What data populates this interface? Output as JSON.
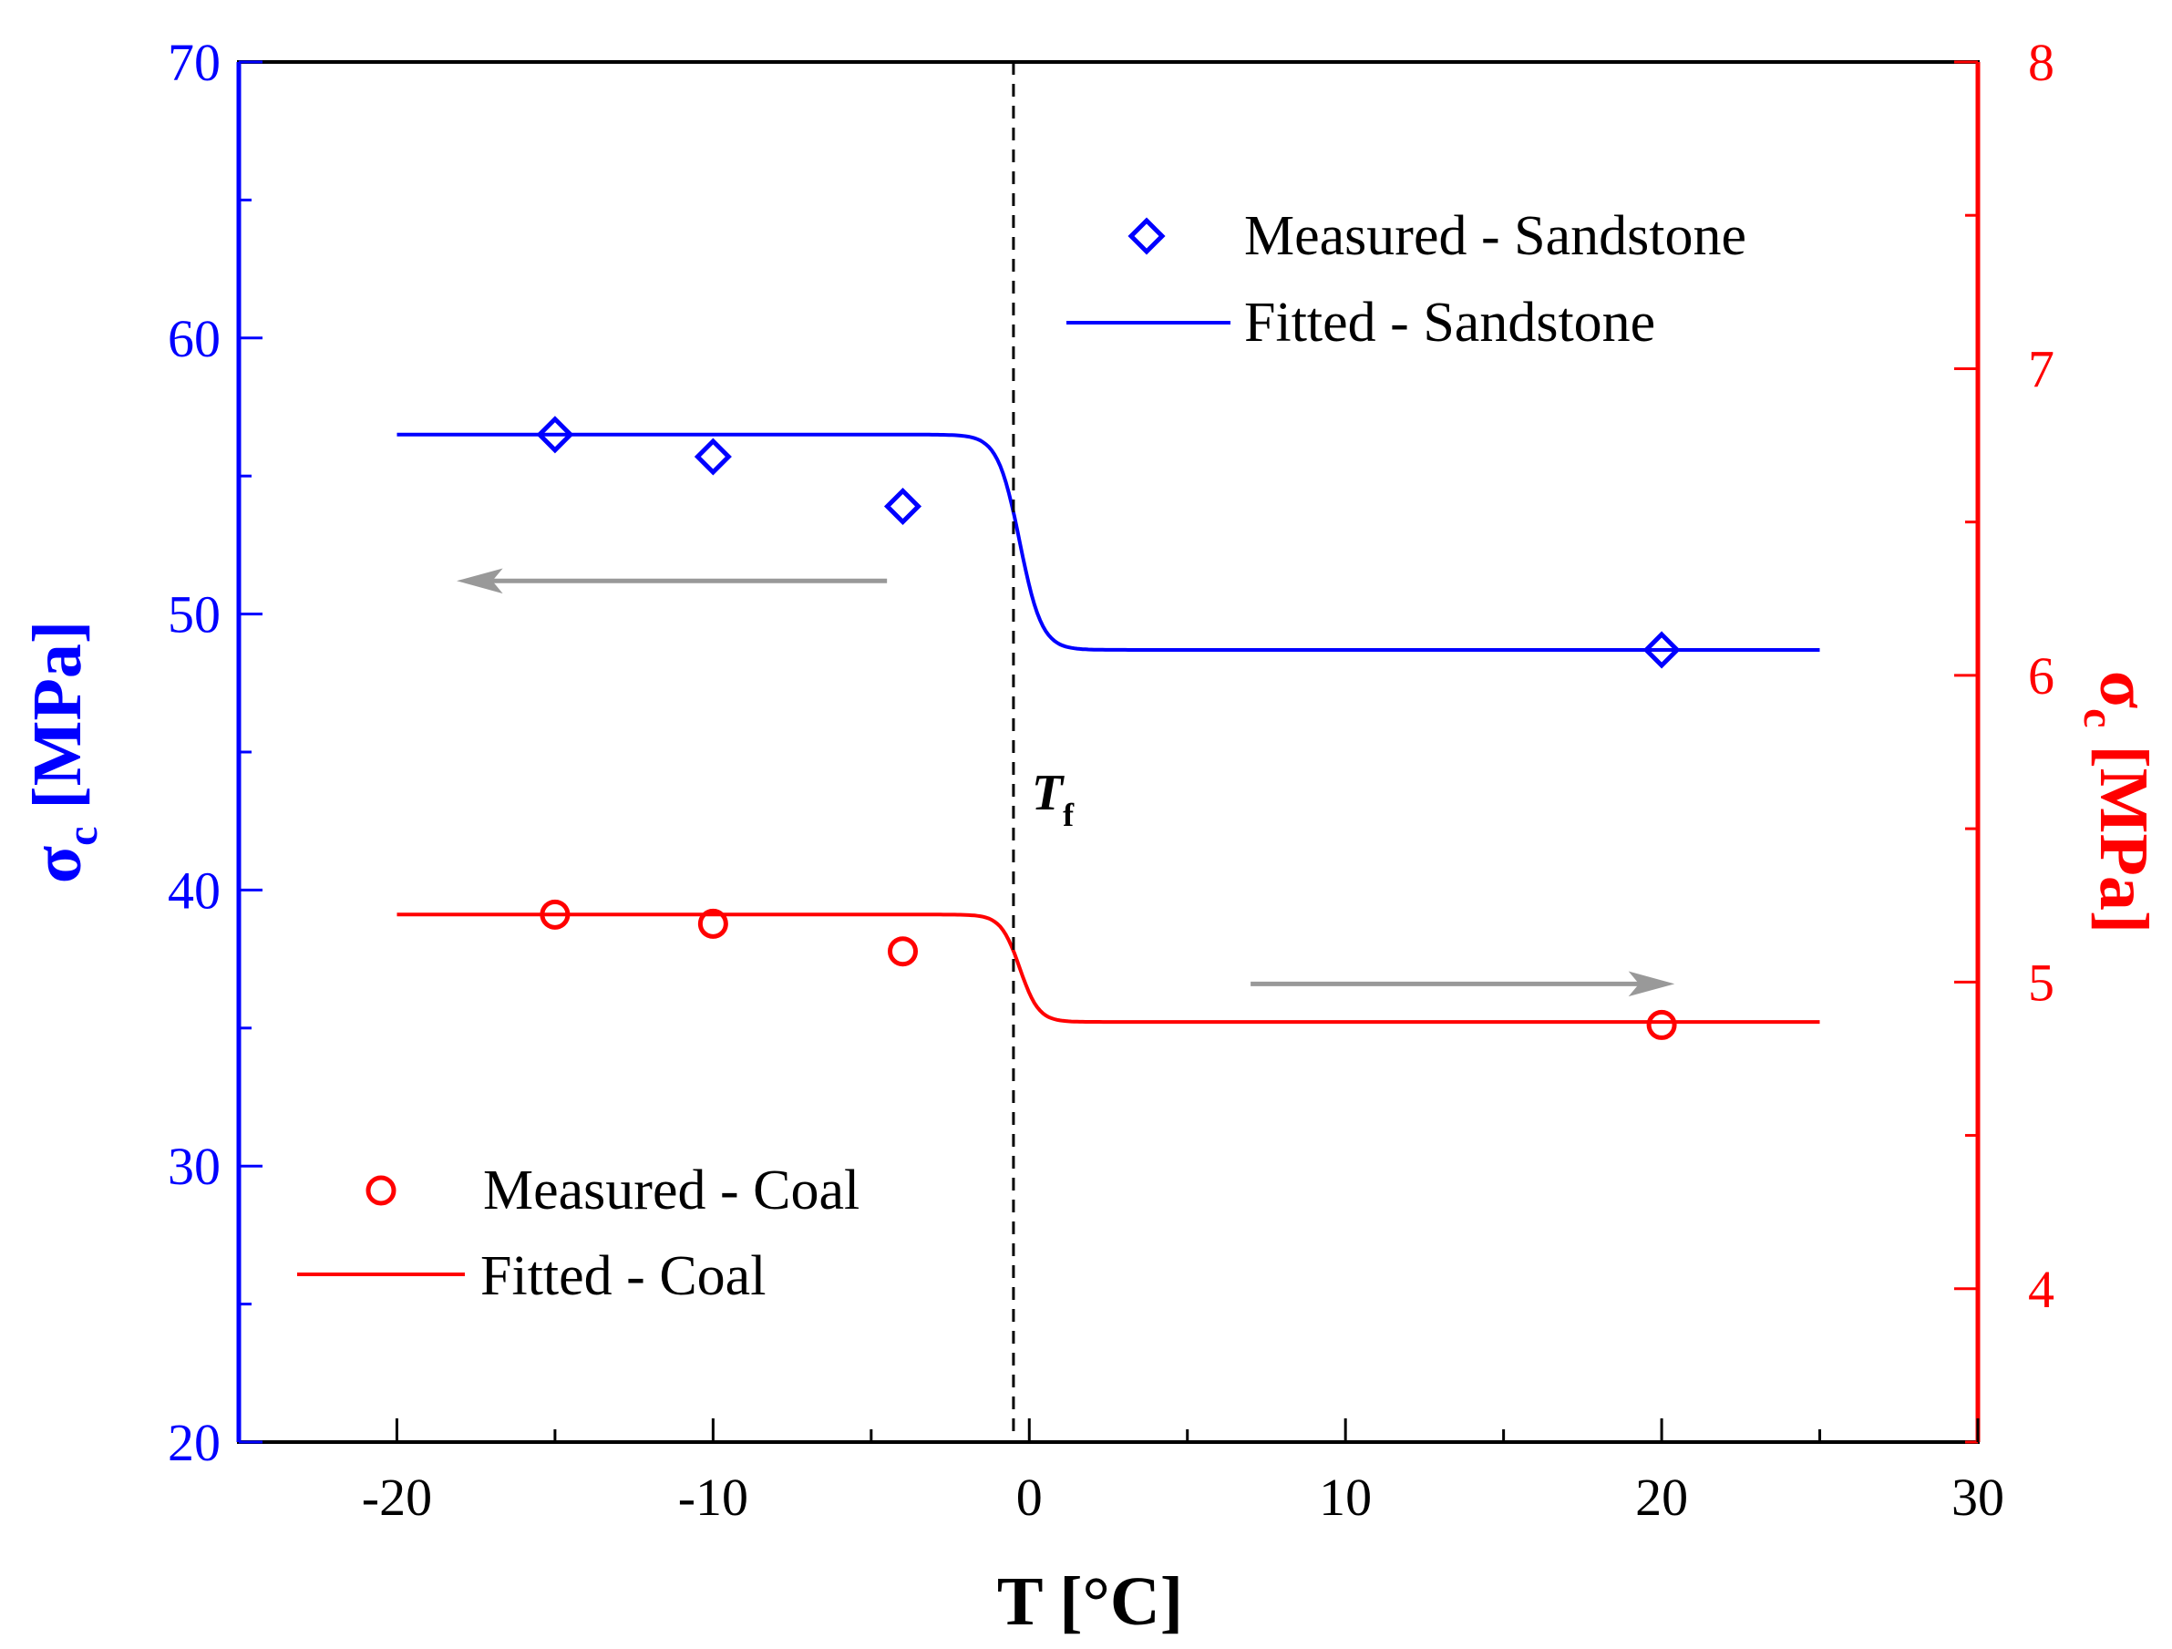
{
  "chart_data": {
    "type": "scatter",
    "x_axis": {
      "label": "T [°C]",
      "range": [
        -25,
        30
      ],
      "ticks": [
        -20,
        -10,
        0,
        10,
        20,
        30
      ],
      "tick_labels": [
        "-20",
        "-10",
        "0",
        "10",
        "20",
        "30"
      ],
      "minor_step": 5
    },
    "y_axis_left": {
      "label_main": "σ",
      "label_sub": "c",
      "label_rest": " [MPa]",
      "range": [
        20,
        70
      ],
      "ticks": [
        20,
        30,
        40,
        50,
        60,
        70
      ],
      "tick_labels": [
        "20",
        "30",
        "40",
        "50",
        "60",
        "70"
      ],
      "minor_step": 5,
      "color": "#0000ff"
    },
    "y_axis_right": {
      "label_main": "σ",
      "label_sub": "c",
      "label_rest": " [MPa]",
      "range": [
        3.5,
        8
      ],
      "ticks": [
        4,
        5,
        6,
        7,
        8
      ],
      "tick_labels": [
        "4",
        "5",
        "6",
        "7",
        "8"
      ],
      "minor_step": 0.5,
      "color": "#ff0000"
    },
    "series": [
      {
        "name": "Measured - Sandstone",
        "kind": "scatter",
        "marker": "diamond",
        "axis": "left",
        "color": "#0000ff",
        "points": [
          [
            -15,
            56.5
          ],
          [
            -10,
            55.7
          ],
          [
            -4,
            53.9
          ],
          [
            20,
            48.7
          ]
        ]
      },
      {
        "name": "Fitted - Sandstone",
        "kind": "line",
        "axis": "left",
        "color": "#0000ff",
        "sigmoid": {
          "x_min": -20,
          "x_max": 25,
          "high": 56.5,
          "low": 48.7,
          "center": -0.3,
          "width": 0.35
        }
      },
      {
        "name": "Measured - Coal",
        "kind": "scatter",
        "marker": "circle",
        "axis": "right",
        "color": "#ff0000",
        "points": [
          [
            -15,
            5.22
          ],
          [
            -10,
            5.19
          ],
          [
            -4,
            5.1
          ],
          [
            20,
            4.86
          ]
        ]
      },
      {
        "name": "Fitted - Coal",
        "kind": "line",
        "axis": "right",
        "color": "#ff0000",
        "sigmoid": {
          "x_min": -20,
          "x_max": 25,
          "high": 5.22,
          "low": 4.87,
          "center": -0.3,
          "width": 0.3
        }
      }
    ],
    "vline": {
      "x": -0.5,
      "label": "T",
      "label_sub": "f",
      "style": "dashed"
    },
    "arrows": [
      {
        "direction": "left",
        "x_from": -4.5,
        "x_to": -18,
        "y_left": 51.2,
        "color": "#999999"
      },
      {
        "direction": "right",
        "x_from": 7,
        "x_to": 20.3,
        "y_left": 36.6,
        "color": "#999999"
      }
    ],
    "legend_top": {
      "position": "top-right",
      "entries": [
        "Measured - Sandstone",
        "Fitted - Sandstone"
      ]
    },
    "legend_bottom": {
      "position": "bottom-left",
      "entries": [
        "Measured - Coal",
        "Fitted - Coal"
      ]
    },
    "grid": false
  }
}
